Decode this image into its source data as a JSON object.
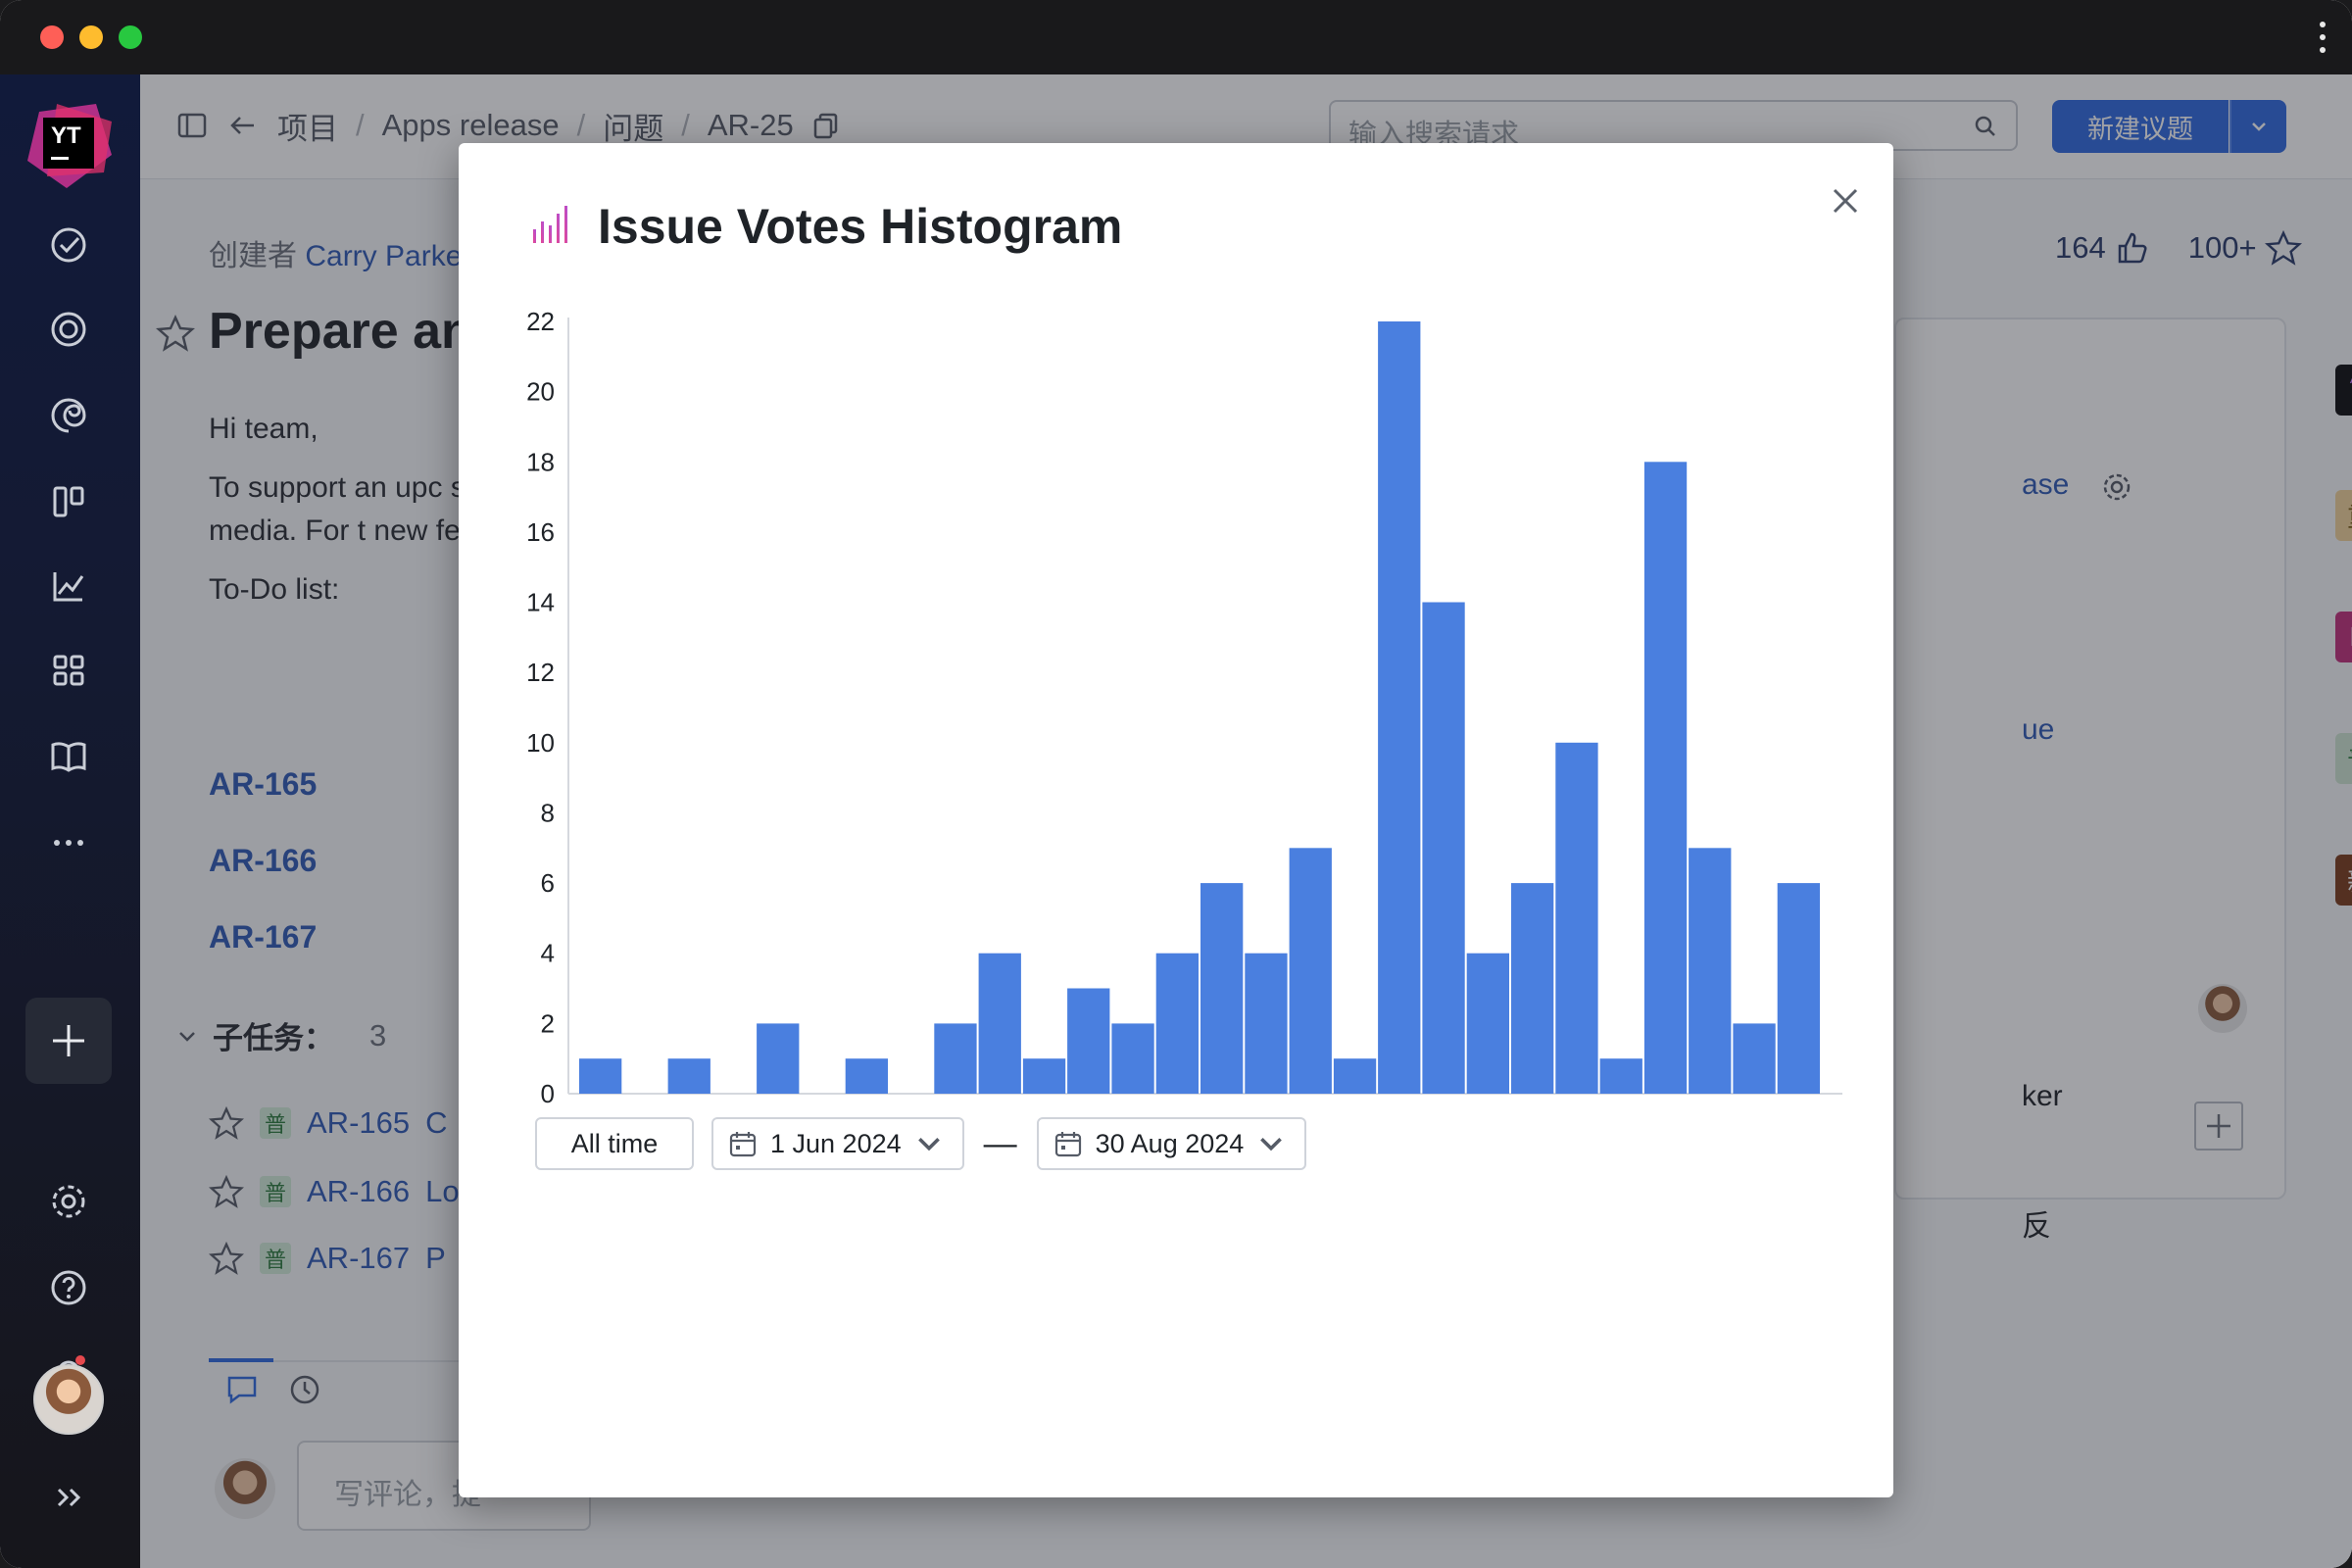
{
  "window": {
    "colors": {
      "accent": "#2f6ae0",
      "bar": "#4a7fdf",
      "sidebar": "#111a3a"
    }
  },
  "sidebar": {
    "logo_text": "YT",
    "icons": [
      "check-circle-icon",
      "lifebuoy-icon",
      "spiral-icon",
      "board-icon",
      "chart-line-icon",
      "apps-grid-icon",
      "book-icon",
      "more-icon",
      "plus-icon",
      "gear-icon",
      "help-icon",
      "bell-icon",
      "avatar",
      "expand-icon"
    ]
  },
  "topbar": {
    "breadcrumb": [
      "项目",
      "Apps release",
      "问题",
      "AR-25"
    ],
    "search_placeholder": "输入搜索请求",
    "new_issue_label": "新建议题"
  },
  "issue": {
    "creator_prefix": "创建者",
    "creator_name": "Carry Parke",
    "title": "Prepare an",
    "description": [
      "Hi team,",
      "To support an upc social media. For t new features.",
      "To-Do list:"
    ],
    "todo_links": [
      "AR-165",
      "AR-166",
      "AR-167"
    ],
    "subtasks_label": "子任务：",
    "subtasks_count": "3",
    "subtasks": [
      {
        "badge": "普",
        "id": "AR-165",
        "title": "C"
      },
      {
        "badge": "普",
        "id": "AR-166",
        "title": "Lo"
      },
      {
        "badge": "普",
        "id": "AR-167",
        "title": "P"
      }
    ],
    "comment_placeholder": "写评论，提",
    "votes": "164",
    "stars": "100+"
  },
  "right_panel": {
    "texts": [
      "ase",
      "ue",
      "ker",
      "反"
    ],
    "badges": [
      {
        "label": "AR",
        "bg": "#0d0d0f",
        "fg": "#c77dff"
      },
      {
        "label": "重",
        "bg": "#f1d39a",
        "fg": "#7a5a12"
      },
      {
        "label": "M",
        "bg": "#c2307a",
        "fg": "#ffffff"
      },
      {
        "label": "普",
        "bg": "#cfe6d3",
        "fg": "#2b7a3d"
      },
      {
        "label": "新",
        "bg": "#7a3b1b",
        "fg": "#ffffff"
      }
    ]
  },
  "modal": {
    "title": "Issue Votes Histogram",
    "all_time_label": "All time",
    "date_from": "1 Jun 2024",
    "date_to": "30 Aug 2024",
    "dash": "—"
  },
  "chart_data": {
    "type": "bar",
    "title": "Issue Votes Histogram",
    "xlabel": "",
    "ylabel": "",
    "ylim": [
      0,
      22
    ],
    "yticks": [
      0,
      2,
      4,
      6,
      8,
      10,
      12,
      14,
      16,
      18,
      20,
      22
    ],
    "x_range": [
      "1 Jun 2024",
      "30 Aug 2024"
    ],
    "values": [
      1,
      0,
      1,
      0,
      2,
      0,
      1,
      0,
      2,
      4,
      1,
      3,
      2,
      4,
      6,
      4,
      7,
      1,
      22,
      14,
      4,
      6,
      10,
      1,
      18,
      7,
      2,
      6
    ],
    "grid": false,
    "bar_color": "#4a7fdf"
  }
}
